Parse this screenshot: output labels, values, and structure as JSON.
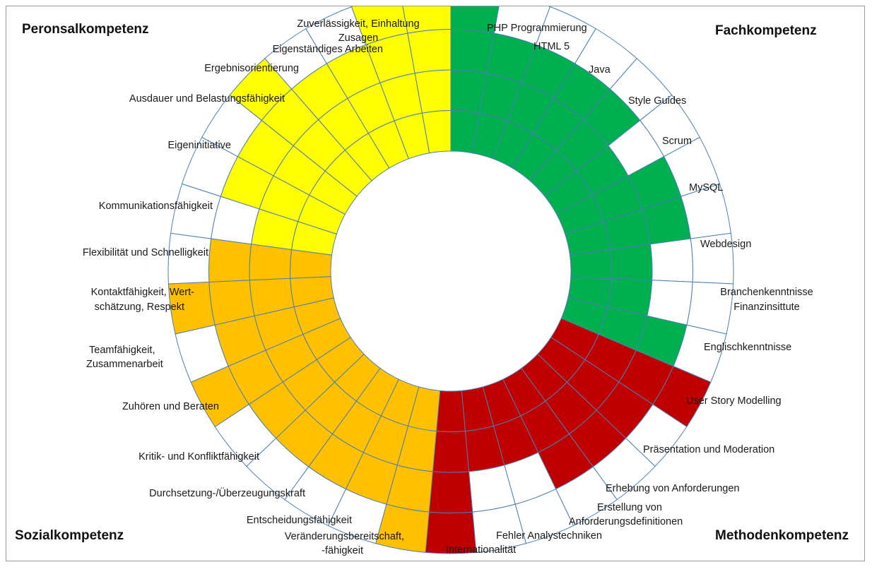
{
  "chart_data": {
    "type": "radial-bar",
    "title": "",
    "levels": 4,
    "max_level": 4,
    "corner_titles": {
      "top_left": "Peronsalkompetenz",
      "top_right": "Fachkompetenz",
      "bottom_left": "Sozialkompetenz",
      "bottom_right": "Methodenkompetenz"
    },
    "categories": [
      {
        "name": "Fachkompetenz",
        "color": "#00b050",
        "skills": [
          {
            "label": "PHP Programmierung",
            "value": 4
          },
          {
            "label": "HTML 5",
            "value": 3
          },
          {
            "label": "Java",
            "value": 3
          },
          {
            "label": "Style Guides",
            "value": 3
          },
          {
            "label": "Scrum",
            "value": 3
          },
          {
            "label": "MySQL",
            "value": 2
          },
          {
            "label": "Webdesign",
            "value": 3
          },
          {
            "label": "Branchenkenntnisse Finanzinsittute",
            "value": 3
          },
          {
            "label": "Englischkenntnisse",
            "value": 2
          },
          {
            "label": "Branchenkenntnisse Finanzinsittute",
            "value": 2
          },
          {
            "label": "Englischkenntnisse",
            "value": 3
          }
        ]
      },
      {
        "name": "Methodenkompetenz",
        "color": "#c00000",
        "skills": [
          {
            "label": "User Story  Modelling",
            "value": 4
          },
          {
            "label": "User Story  Modelling",
            "value": 3
          },
          {
            "label": "Präsentation und Moderation",
            "value": 3
          },
          {
            "label": "Erhebung von Anforderungen",
            "value": 3
          },
          {
            "label": "Erstellung von Anforderungsdefinitionen",
            "value": 2
          },
          {
            "label": "Fehler Analystechniken",
            "value": 2
          },
          {
            "label": "Internationalität",
            "value": 4
          }
        ]
      },
      {
        "name": "Sozialkompetenz",
        "color": "#ffc000",
        "skills": [
          {
            "label": "Internationalität",
            "value": 4
          },
          {
            "label": "Veränderungsbereitschaft, -fähigkeit",
            "value": 3
          },
          {
            "label": "Entscheidungsfähigkeit",
            "value": 3
          },
          {
            "label": "Entscheidungsfähigkeit",
            "value": 3
          },
          {
            "label": "Durchsetzung-/Überzeugungskraft",
            "value": 3
          },
          {
            "label": "Kritik- und Konfliktfähigkeit",
            "value": 4
          },
          {
            "label": "Zuhören und Beraten",
            "value": 3
          },
          {
            "label": "Teamfähigkeit, Zusammenarbeit",
            "value": 4
          },
          {
            "label": "Kontaktfähigkeit, Wert-schätzung, Respekt",
            "value": 3
          }
        ]
      },
      {
        "name": "Peronsalkompetenz",
        "color": "#ffff00",
        "skills": [
          {
            "label": "Flexibilität und Schnelligkeit",
            "value": 2
          },
          {
            "label": "Kommunikationsfähigkeit",
            "value": 3
          },
          {
            "label": "Kommunikationsfähigkeit",
            "value": 3
          },
          {
            "label": "Eigeninitiative",
            "value": 4
          },
          {
            "label": "Ausdauer und Belastungsfähigkeit",
            "value": 3
          },
          {
            "label": "Ergebnisorientierung",
            "value": 3
          },
          {
            "label": "Eigenständiges Arbeiten",
            "value": 4
          },
          {
            "label": "Zuverlässigkeit, Einhaltung Zusagen",
            "value": 4
          }
        ]
      }
    ],
    "labels": [
      "PHP Programmierung",
      "HTML 5",
      "Java",
      "Style Guides",
      "Scrum",
      "MySQL",
      "Webdesign",
      "Branchenkenntnisse",
      "Finanzinsittute",
      "Englischkenntnisse",
      "User Story  Modelling",
      "Präsentation und Moderation",
      "Erhebung von Anforderungen",
      "Erstellung von",
      "Anforderungsdefinitionen",
      "Fehler Analystechniken",
      "Internationalität",
      "Veränderungsbereitschaft,",
      "-fähigkeit",
      "Entscheidungsfähigkeit",
      "Durchsetzung-/Überzeugungskraft",
      "Kritik- und Konfliktfähigkeit",
      "Zuhören und Beraten",
      "Teamfähigkeit,",
      "Zusammenarbeit",
      "Kontaktfähigkeit, Wert-",
      "schätzung, Respekt",
      "Flexibilität und Schnelligkeit",
      "Kommunikationsfähigkeit",
      "Eigeninitiative",
      "Ausdauer und Belastungsfähigkeit",
      "Ergebnisorientierung",
      "Eigenständiges Arbeiten",
      "Zuverlässigkeit, Einhaltung",
      "Zusagen"
    ]
  }
}
